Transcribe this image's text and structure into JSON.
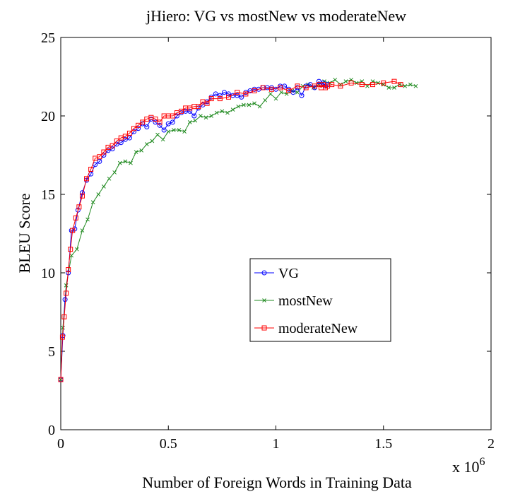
{
  "chart_data": {
    "type": "line",
    "title": "jHiero: VG vs mostNew vs moderateNew",
    "xlabel": "Number of Foreign Words in Training Data",
    "ylabel": "BLEU Score",
    "x_multiplier_label": "x 10",
    "x_multiplier_exponent": "6",
    "xlim": [
      0,
      2000000
    ],
    "ylim": [
      0,
      25
    ],
    "x_ticks": [
      0,
      0.5,
      1,
      1.5,
      2
    ],
    "x_tick_labels": [
      "0",
      "0.5",
      "1",
      "1.5",
      "2"
    ],
    "y_ticks": [
      0,
      5,
      10,
      15,
      20,
      25
    ],
    "y_tick_labels": [
      "0",
      "5",
      "10",
      "15",
      "20",
      "25"
    ],
    "grid": false,
    "legend_position": "center-right",
    "series": [
      {
        "name": "VG",
        "color": "#0000ff",
        "marker": "circle",
        "x": [
          0,
          10000,
          20000,
          35000,
          50000,
          65000,
          80000,
          100000,
          120000,
          140000,
          160000,
          180000,
          200000,
          220000,
          240000,
          260000,
          280000,
          300000,
          320000,
          340000,
          360000,
          380000,
          400000,
          420000,
          440000,
          460000,
          480000,
          500000,
          520000,
          540000,
          560000,
          580000,
          600000,
          620000,
          640000,
          660000,
          680000,
          700000,
          720000,
          740000,
          760000,
          780000,
          800000,
          820000,
          840000,
          860000,
          880000,
          900000,
          920000,
          940000,
          960000,
          980000,
          1000000,
          1020000,
          1040000,
          1060000,
          1080000,
          1100000,
          1120000,
          1140000,
          1160000,
          1180000,
          1200000,
          1210000,
          1220000,
          1230000,
          1240000
        ],
        "y": [
          3.2,
          6.0,
          8.3,
          10.0,
          12.7,
          12.8,
          14.0,
          15.1,
          15.9,
          16.3,
          16.9,
          17.1,
          17.5,
          17.8,
          17.9,
          18.2,
          18.3,
          18.5,
          18.6,
          19.0,
          19.2,
          19.5,
          19.3,
          19.8,
          19.6,
          19.4,
          19.1,
          19.5,
          19.6,
          20.0,
          20.2,
          20.3,
          20.3,
          20.0,
          20.5,
          20.7,
          20.9,
          21.2,
          21.4,
          21.3,
          21.5,
          21.4,
          21.3,
          21.3,
          21.2,
          21.5,
          21.6,
          21.7,
          21.7,
          21.8,
          21.8,
          21.8,
          21.7,
          21.9,
          21.9,
          21.7,
          21.5,
          21.8,
          21.3,
          21.9,
          22.0,
          21.8,
          22.2,
          22.0,
          22.1,
          21.9,
          22.0
        ]
      },
      {
        "name": "mostNew",
        "color": "#228b22",
        "marker": "x",
        "x": [
          0,
          10000,
          25000,
          50000,
          75000,
          100000,
          125000,
          150000,
          175000,
          200000,
          225000,
          250000,
          275000,
          300000,
          325000,
          350000,
          375000,
          400000,
          425000,
          450000,
          475000,
          500000,
          525000,
          550000,
          575000,
          600000,
          625000,
          650000,
          675000,
          700000,
          725000,
          750000,
          775000,
          800000,
          825000,
          850000,
          875000,
          900000,
          925000,
          950000,
          975000,
          1000000,
          1025000,
          1050000,
          1075000,
          1100000,
          1125000,
          1150000,
          1175000,
          1200000,
          1225000,
          1250000,
          1275000,
          1300000,
          1325000,
          1350000,
          1375000,
          1400000,
          1425000,
          1450000,
          1475000,
          1500000,
          1525000,
          1550000,
          1575000,
          1600000,
          1625000,
          1650000
        ],
        "y": [
          3.2,
          6.5,
          9.2,
          11.1,
          11.5,
          12.7,
          13.4,
          14.5,
          15.0,
          15.5,
          16.0,
          16.4,
          17.0,
          17.1,
          17.0,
          17.7,
          17.8,
          18.2,
          18.4,
          18.8,
          18.5,
          19.0,
          19.1,
          19.1,
          19.0,
          19.6,
          19.7,
          20.0,
          19.9,
          20.0,
          20.2,
          20.3,
          20.2,
          20.4,
          20.6,
          20.7,
          20.7,
          20.8,
          20.6,
          21.0,
          21.4,
          21.1,
          21.5,
          21.4,
          21.6,
          21.5,
          21.9,
          22.0,
          21.8,
          22.0,
          22.2,
          22.1,
          22.3,
          22.0,
          22.2,
          22.3,
          22.1,
          22.2,
          21.9,
          22.2,
          22.1,
          22.0,
          21.8,
          21.8,
          22.0,
          21.9,
          22.0,
          21.9
        ]
      },
      {
        "name": "moderateNew",
        "color": "#ff0000",
        "marker": "square",
        "x": [
          0,
          8000,
          16000,
          25000,
          35000,
          45000,
          55000,
          70000,
          85000,
          100000,
          120000,
          140000,
          160000,
          180000,
          200000,
          220000,
          240000,
          260000,
          280000,
          300000,
          320000,
          340000,
          360000,
          380000,
          400000,
          420000,
          440000,
          460000,
          480000,
          500000,
          520000,
          540000,
          560000,
          580000,
          600000,
          620000,
          640000,
          660000,
          680000,
          700000,
          740000,
          780000,
          820000,
          860000,
          900000,
          940000,
          980000,
          1020000,
          1060000,
          1100000,
          1140000,
          1180000,
          1200000,
          1210000,
          1220000,
          1230000,
          1240000,
          1260000,
          1300000,
          1350000,
          1400000,
          1450000,
          1500000,
          1550000,
          1580000
        ],
        "y": [
          3.2,
          5.9,
          7.2,
          8.7,
          10.2,
          11.5,
          12.7,
          13.5,
          14.2,
          14.9,
          16.0,
          16.6,
          17.3,
          17.4,
          17.7,
          18.0,
          18.1,
          18.4,
          18.6,
          18.7,
          18.9,
          19.2,
          19.4,
          19.6,
          19.8,
          19.9,
          19.8,
          19.6,
          20.0,
          20.0,
          20.0,
          20.2,
          20.3,
          20.5,
          20.5,
          20.6,
          20.6,
          20.9,
          20.8,
          21.1,
          21.1,
          21.2,
          21.5,
          21.4,
          21.6,
          21.8,
          21.7,
          21.8,
          21.6,
          21.9,
          21.8,
          21.9,
          22.0,
          21.8,
          22.0,
          21.8,
          21.9,
          22.0,
          21.9,
          22.1,
          22.0,
          22.0,
          22.1,
          22.2,
          22.0
        ]
      }
    ]
  }
}
